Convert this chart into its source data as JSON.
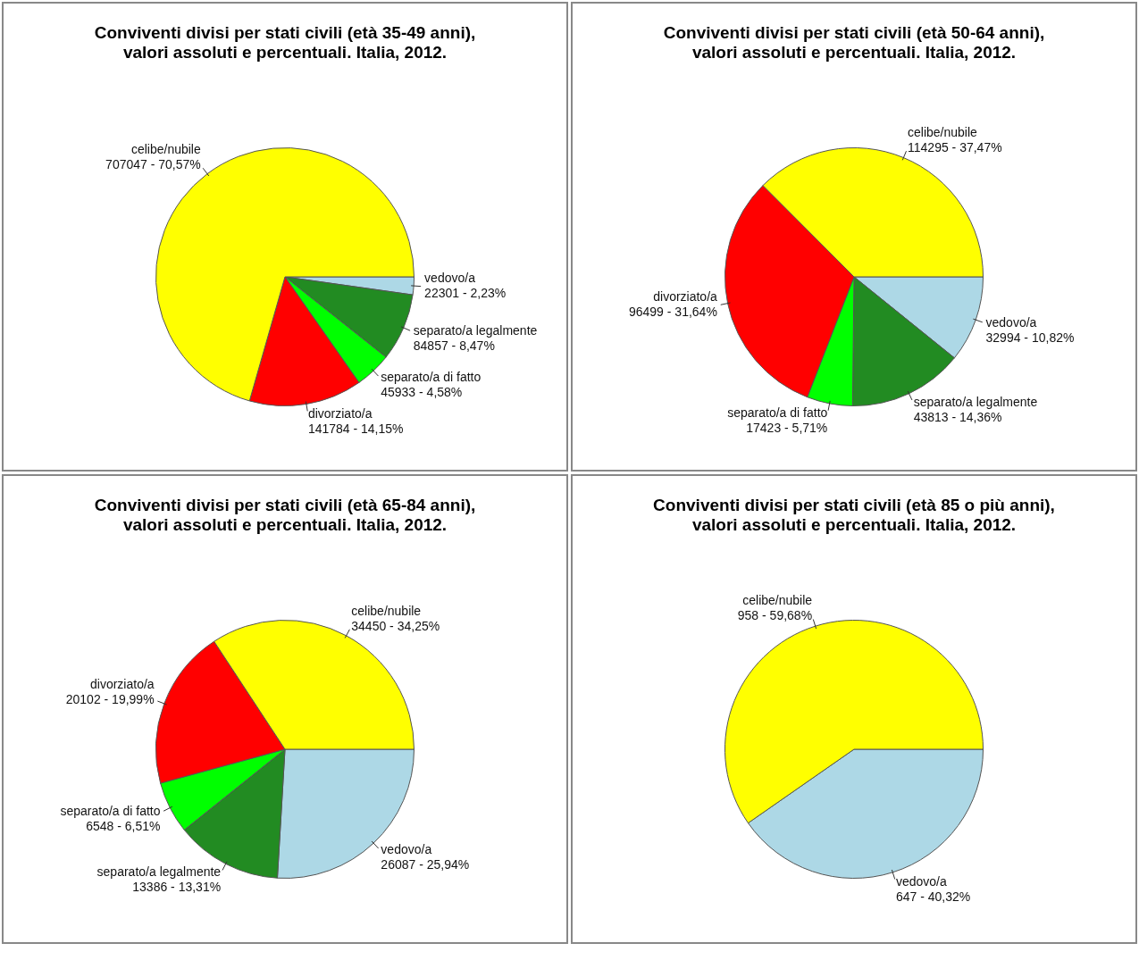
{
  "chart_data": [
    {
      "type": "pie",
      "title": "Conviventi divisi per stati civili (età 35-49 anni),\nvalori assoluti e percentuali. Italia, 2012.",
      "categories": [
        "vedovo/a",
        "separato/a legalmente",
        "separato/a di fatto",
        "divorziato/a",
        "celibe/nubile"
      ],
      "values": [
        22301,
        84857,
        45933,
        141784,
        707047
      ],
      "value_labels": [
        "22301 - 2,23%",
        "84857 - 8,47%",
        "45933 - 4,58%",
        "141784 - 14,15%",
        "707047 - 70,57%"
      ],
      "colors": [
        "#add8e6",
        "#228b22",
        "#00ff00",
        "#ff0000",
        "#ffff00"
      ],
      "legend": false
    },
    {
      "type": "pie",
      "title": "Conviventi divisi per stati civili (età 50-64 anni),\nvalori assoluti e percentuali. Italia, 2012.",
      "categories": [
        "vedovo/a",
        "separato/a legalmente",
        "separato/a di fatto",
        "divorziato/a",
        "celibe/nubile"
      ],
      "values": [
        32994,
        43813,
        17423,
        96499,
        114295
      ],
      "value_labels": [
        "32994 - 10,82%",
        "43813 - 14,36%",
        "17423 - 5,71%",
        "96499 - 31,64%",
        "114295 - 37,47%"
      ],
      "colors": [
        "#add8e6",
        "#228b22",
        "#00ff00",
        "#ff0000",
        "#ffff00"
      ],
      "legend": false
    },
    {
      "type": "pie",
      "title": "Conviventi divisi per stati civili (età 65-84 anni),\nvalori assoluti e percentuali. Italia, 2012.",
      "categories": [
        "vedovo/a",
        "separato/a legalmente",
        "separato/a di fatto",
        "divorziato/a",
        "celibe/nubile"
      ],
      "values": [
        26087,
        13386,
        6548,
        20102,
        34450
      ],
      "value_labels": [
        "26087 - 25,94%",
        "13386 - 13,31%",
        "6548 - 6,51%",
        "20102 - 19,99%",
        "34450 - 34,25%"
      ],
      "colors": [
        "#add8e6",
        "#228b22",
        "#00ff00",
        "#ff0000",
        "#ffff00"
      ],
      "legend": false
    },
    {
      "type": "pie",
      "title": "Conviventi divisi per stati civili (età 85 o più anni),\nvalori assoluti e percentuali. Italia, 2012.",
      "categories": [
        "vedovo/a",
        "celibe/nubile"
      ],
      "values": [
        647,
        958
      ],
      "value_labels": [
        "647 - 40,32%",
        "958 - 59,68%"
      ],
      "colors": [
        "#add8e6",
        "#ffff00"
      ],
      "legend": false
    }
  ]
}
